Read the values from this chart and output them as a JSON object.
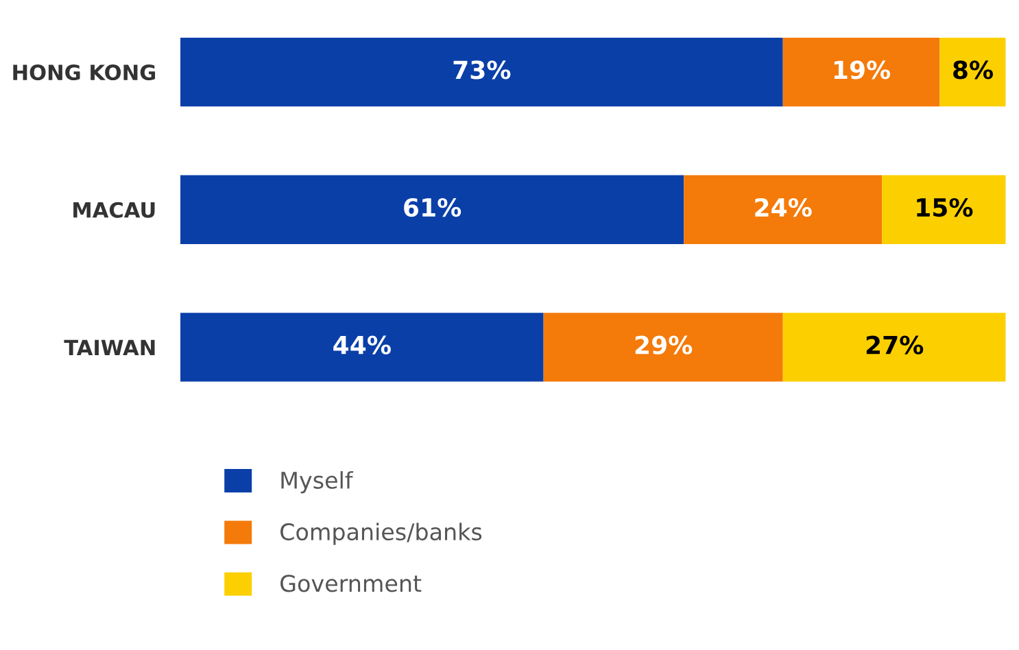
{
  "chart_data": {
    "type": "bar",
    "orientation": "horizontal",
    "stacked": true,
    "categories": [
      "HONG KONG",
      "MACAU",
      "TAIWAN"
    ],
    "series": [
      {
        "name": "Myself",
        "color": "#0a3fa8",
        "values": [
          73,
          61,
          44
        ],
        "value_labels": [
          "73%",
          "61%",
          "44%"
        ]
      },
      {
        "name": "Companies/banks",
        "color": "#f47a0a",
        "values": [
          19,
          24,
          29
        ],
        "value_labels": [
          "19%",
          "24%",
          "29%"
        ]
      },
      {
        "name": "Government",
        "color": "#fcd000",
        "values": [
          8,
          15,
          27
        ],
        "value_labels": [
          "8%",
          "15%",
          "27%"
        ]
      }
    ],
    "tick_labels": "y",
    "legend": "bottom",
    "grid": false
  }
}
